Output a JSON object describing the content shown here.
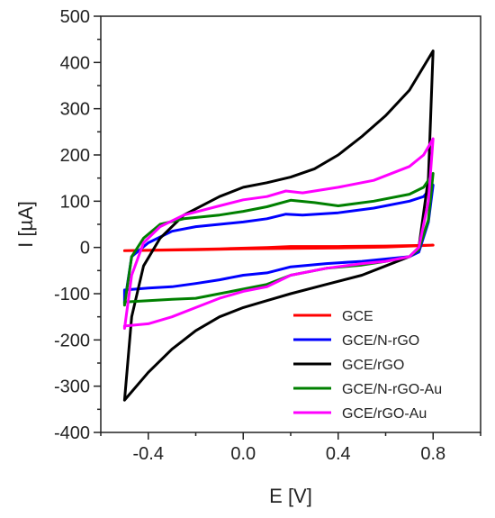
{
  "chart_data": {
    "type": "line",
    "xlabel": "E [V]",
    "ylabel": "I [µA]",
    "xlim": [
      -0.6,
      1.0
    ],
    "ylim": [
      -400,
      500
    ],
    "x_ticks": [
      -0.4,
      0.0,
      0.4,
      0.8
    ],
    "x_tick_labels": [
      "-0.4",
      "0.0",
      "0.4",
      "0.8"
    ],
    "y_ticks": [
      500,
      400,
      300,
      200,
      100,
      0,
      -100,
      -200,
      -300,
      -400
    ],
    "y_tick_labels": [
      "500",
      "400",
      "300",
      "200",
      "100",
      "0",
      "-100",
      "-200",
      "-300",
      "-400"
    ],
    "grid": false,
    "legend_position": "bottom-right",
    "series": [
      {
        "name": "GCE",
        "color": "#ff0000",
        "points": [
          [
            -0.5,
            -7
          ],
          [
            -0.3,
            -5
          ],
          [
            -0.1,
            -3
          ],
          [
            0.1,
            0
          ],
          [
            0.2,
            2
          ],
          [
            0.4,
            2
          ],
          [
            0.6,
            3
          ],
          [
            0.8,
            5
          ],
          [
            0.6,
            1
          ],
          [
            0.4,
            -1
          ],
          [
            0.2,
            -2
          ],
          [
            0.0,
            -3
          ],
          [
            -0.2,
            -5
          ],
          [
            -0.5,
            -7
          ]
        ]
      },
      {
        "name": "GCE/N-rGO",
        "color": "#0000ff",
        "points": [
          [
            -0.5,
            -120
          ],
          [
            -0.47,
            -20
          ],
          [
            -0.4,
            10
          ],
          [
            -0.3,
            35
          ],
          [
            -0.2,
            45
          ],
          [
            -0.1,
            50
          ],
          [
            0.0,
            55
          ],
          [
            0.1,
            62
          ],
          [
            0.18,
            72
          ],
          [
            0.25,
            70
          ],
          [
            0.4,
            75
          ],
          [
            0.55,
            85
          ],
          [
            0.7,
            100
          ],
          [
            0.76,
            110
          ],
          [
            0.8,
            135
          ],
          [
            0.78,
            55
          ],
          [
            0.74,
            -10
          ],
          [
            0.7,
            -20
          ],
          [
            0.6,
            -25
          ],
          [
            0.5,
            -30
          ],
          [
            0.35,
            -35
          ],
          [
            0.2,
            -42
          ],
          [
            0.1,
            -55
          ],
          [
            0.0,
            -60
          ],
          [
            -0.1,
            -70
          ],
          [
            -0.2,
            -78
          ],
          [
            -0.3,
            -85
          ],
          [
            -0.4,
            -88
          ],
          [
            -0.5,
            -92
          ],
          [
            -0.5,
            -120
          ]
        ]
      },
      {
        "name": "GCE/rGO",
        "color": "#000000",
        "points": [
          [
            -0.5,
            -330
          ],
          [
            -0.47,
            -150
          ],
          [
            -0.42,
            -40
          ],
          [
            -0.35,
            20
          ],
          [
            -0.25,
            70
          ],
          [
            -0.1,
            110
          ],
          [
            0.0,
            130
          ],
          [
            0.1,
            140
          ],
          [
            0.2,
            152
          ],
          [
            0.3,
            170
          ],
          [
            0.4,
            200
          ],
          [
            0.5,
            240
          ],
          [
            0.6,
            285
          ],
          [
            0.7,
            340
          ],
          [
            0.8,
            425
          ],
          [
            0.78,
            150
          ],
          [
            0.74,
            0
          ],
          [
            0.7,
            -20
          ],
          [
            0.6,
            -40
          ],
          [
            0.5,
            -60
          ],
          [
            0.35,
            -80
          ],
          [
            0.2,
            -100
          ],
          [
            0.1,
            -115
          ],
          [
            0.0,
            -130
          ],
          [
            -0.1,
            -150
          ],
          [
            -0.2,
            -180
          ],
          [
            -0.3,
            -220
          ],
          [
            -0.4,
            -270
          ],
          [
            -0.5,
            -330
          ]
        ]
      },
      {
        "name": "GCE/N-rGO-Au",
        "color": "#008000",
        "points": [
          [
            -0.5,
            -125
          ],
          [
            -0.47,
            -20
          ],
          [
            -0.42,
            20
          ],
          [
            -0.35,
            50
          ],
          [
            -0.25,
            62
          ],
          [
            -0.1,
            70
          ],
          [
            0.0,
            78
          ],
          [
            0.1,
            88
          ],
          [
            0.2,
            102
          ],
          [
            0.3,
            97
          ],
          [
            0.4,
            90
          ],
          [
            0.55,
            100
          ],
          [
            0.7,
            115
          ],
          [
            0.76,
            130
          ],
          [
            0.8,
            160
          ],
          [
            0.78,
            60
          ],
          [
            0.74,
            -5
          ],
          [
            0.7,
            -20
          ],
          [
            0.6,
            -30
          ],
          [
            0.5,
            -38
          ],
          [
            0.35,
            -45
          ],
          [
            0.2,
            -60
          ],
          [
            0.1,
            -80
          ],
          [
            0.0,
            -90
          ],
          [
            -0.1,
            -100
          ],
          [
            -0.2,
            -110
          ],
          [
            -0.3,
            -112
          ],
          [
            -0.4,
            -115
          ],
          [
            -0.5,
            -118
          ],
          [
            -0.5,
            -125
          ]
        ]
      },
      {
        "name": "GCE/rGO-Au",
        "color": "#ff00ff",
        "points": [
          [
            -0.5,
            -175
          ],
          [
            -0.47,
            -60
          ],
          [
            -0.42,
            10
          ],
          [
            -0.35,
            45
          ],
          [
            -0.25,
            70
          ],
          [
            -0.1,
            90
          ],
          [
            0.0,
            103
          ],
          [
            0.1,
            110
          ],
          [
            0.18,
            122
          ],
          [
            0.25,
            118
          ],
          [
            0.4,
            130
          ],
          [
            0.55,
            145
          ],
          [
            0.7,
            175
          ],
          [
            0.76,
            200
          ],
          [
            0.8,
            235
          ],
          [
            0.78,
            100
          ],
          [
            0.74,
            0
          ],
          [
            0.7,
            -20
          ],
          [
            0.6,
            -30
          ],
          [
            0.5,
            -35
          ],
          [
            0.35,
            -45
          ],
          [
            0.2,
            -60
          ],
          [
            0.1,
            -85
          ],
          [
            0.0,
            -95
          ],
          [
            -0.1,
            -110
          ],
          [
            -0.2,
            -130
          ],
          [
            -0.3,
            -150
          ],
          [
            -0.4,
            -165
          ],
          [
            -0.5,
            -170
          ],
          [
            -0.5,
            -175
          ]
        ]
      }
    ]
  }
}
